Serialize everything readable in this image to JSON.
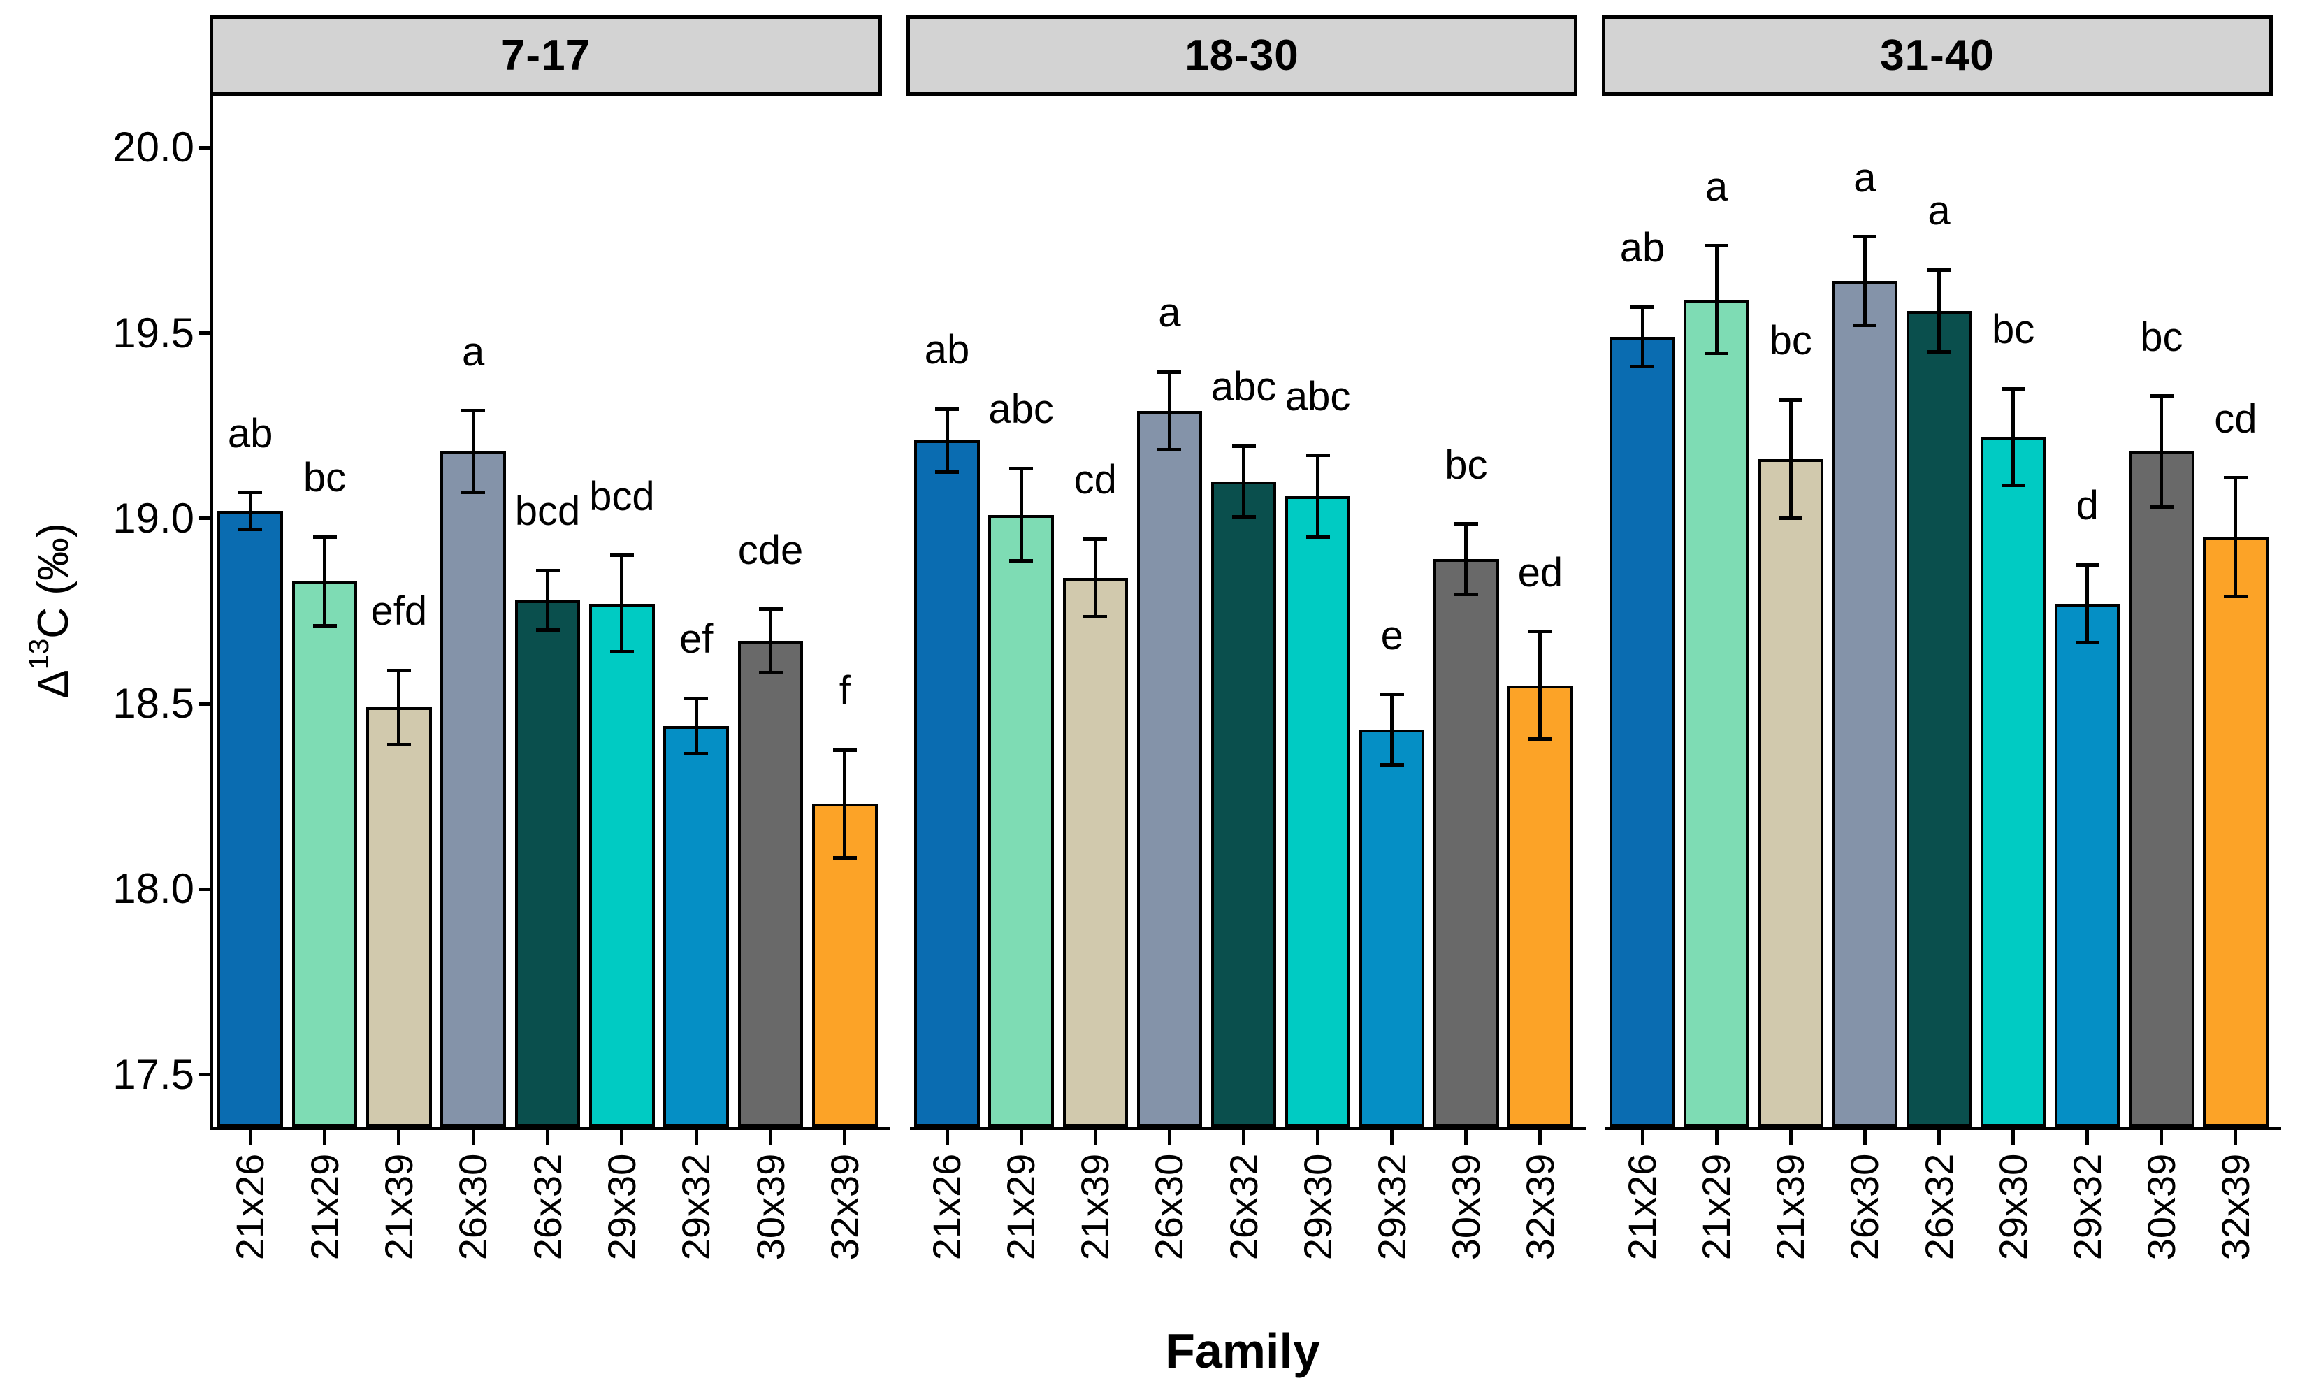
{
  "figure": {
    "x_axis_title": "Family",
    "y_axis_title_text": "Δ13C (‰)",
    "y_axis_title_parts": {
      "prefix": "Δ",
      "sup": "13",
      "suffix": "C (‰)"
    }
  },
  "chart_data": {
    "type": "bar",
    "title": "",
    "xlabel": "Family",
    "ylabel": "Δ13C (‰)",
    "grid": "off",
    "legend": "none",
    "ylim": [
      17.36,
      20.14
    ],
    "yticks": [
      20.0,
      19.5,
      19.0,
      18.5,
      18.0,
      17.5
    ],
    "categories": [
      "21x26",
      "21x29",
      "21x39",
      "26x30",
      "26x32",
      "29x30",
      "29x32",
      "30x39",
      "32x39"
    ],
    "bar_colors": [
      "#0a6cb1",
      "#7edcb4",
      "#d1c9ad",
      "#8493a9",
      "#0a4f4d",
      "#00cbc3",
      "#058fc5",
      "#696969",
      "#fca327"
    ],
    "error_bar_color": "#000000",
    "strip_fill": "#d3d3d3",
    "facets": [
      {
        "label": "7-17",
        "values": [
          19.02,
          18.83,
          18.49,
          19.18,
          18.78,
          18.77,
          18.44,
          18.67,
          18.23
        ],
        "errors": [
          0.05,
          0.12,
          0.1,
          0.11,
          0.08,
          0.13,
          0.075,
          0.085,
          0.145
        ],
        "sig_letters": [
          "ab",
          "bc",
          "efd",
          "a",
          "bcd",
          "bcd",
          "ef",
          "cde",
          "f"
        ]
      },
      {
        "label": "18-30",
        "values": [
          19.21,
          19.01,
          18.84,
          19.29,
          19.1,
          19.06,
          18.43,
          18.89,
          18.55
        ],
        "errors": [
          0.085,
          0.125,
          0.105,
          0.105,
          0.095,
          0.11,
          0.095,
          0.095,
          0.145
        ],
        "sig_letters": [
          "ab",
          "abc",
          "cd",
          "a",
          "abc",
          "abc",
          "e",
          "bc",
          "ed"
        ]
      },
      {
        "label": "31-40",
        "values": [
          19.49,
          19.59,
          19.16,
          19.64,
          19.56,
          19.22,
          18.77,
          19.18,
          18.95
        ],
        "errors": [
          0.08,
          0.145,
          0.16,
          0.12,
          0.11,
          0.13,
          0.105,
          0.15,
          0.16
        ],
        "sig_letters": [
          "ab",
          "a",
          "bc",
          "a",
          "a",
          "bc",
          "d",
          "bc",
          "cd"
        ]
      }
    ]
  }
}
